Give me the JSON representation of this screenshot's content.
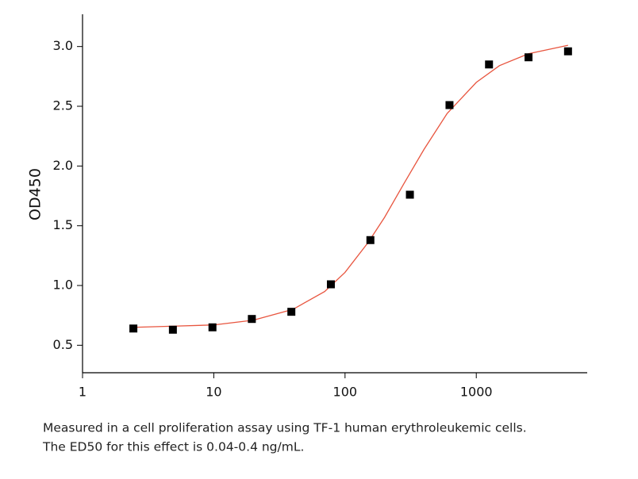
{
  "chart_data": {
    "type": "scatter",
    "ylabel": "OD450",
    "xlog": true,
    "xlim": [
      1,
      7000
    ],
    "ylim": [
      0.27,
      3.27
    ],
    "xticks": [
      1,
      10,
      100,
      1000
    ],
    "yticks": [
      0.5,
      {
        "value": 1,
        "label": "1.0"
      },
      1.5,
      {
        "value": 2,
        "label": "2.0"
      },
      2.5,
      {
        "value": 3,
        "label": "3.0"
      }
    ],
    "series": [
      {
        "mode": "markers",
        "color": "#000000",
        "x": [
          2.44,
          4.88,
          9.77,
          19.5,
          39,
          78,
          156,
          312,
          625,
          1250,
          2500,
          5000
        ],
        "values": [
          0.64,
          0.63,
          0.65,
          0.72,
          0.78,
          1.01,
          1.38,
          1.76,
          2.51,
          2.85,
          2.91,
          2.96
        ]
      },
      {
        "mode": "line",
        "color": "#e8553f",
        "x": [
          2.44,
          5,
          10,
          20,
          40,
          70,
          100,
          150,
          200,
          280,
          400,
          600,
          1000,
          1500,
          2500,
          5000
        ],
        "values": [
          0.65,
          0.66,
          0.67,
          0.71,
          0.8,
          0.95,
          1.11,
          1.36,
          1.57,
          1.85,
          2.14,
          2.44,
          2.7,
          2.84,
          2.94,
          3.01
        ]
      }
    ]
  },
  "caption": [
    "Measured in a cell proliferation assay using TF-1 human erythroleukemic cells.",
    "The ED50 for this effect is 0.04-0.4 ng/mL."
  ]
}
